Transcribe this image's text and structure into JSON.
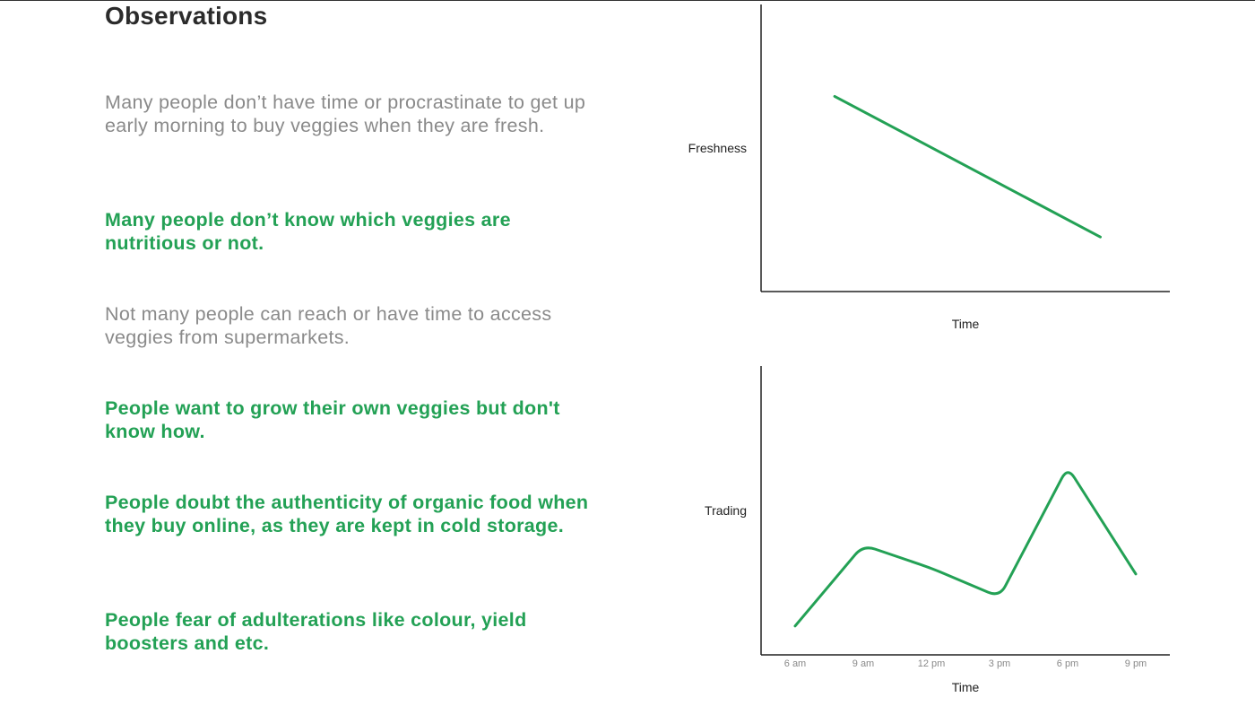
{
  "title": "Observations",
  "observations": [
    {
      "text": "Many people don’t have time or procrastinate to get up early morning to buy veggies when they are fresh.",
      "style": "muted"
    },
    {
      "text": "Many people don’t know which veggies are nutritious or not.",
      "style": "accent"
    },
    {
      "text": "Not many people can reach or have time to access veggies from supermarkets.",
      "style": "muted"
    },
    {
      "text": "People want to grow their own veggies but don't know how.",
      "style": "accent"
    },
    {
      "text": "People doubt the authenticity of organic food when they buy online, as they are kept in cold storage.",
      "style": "accent"
    },
    {
      "text": "People fear of adulterations like colour, yield boosters and etc.",
      "style": "accent"
    }
  ],
  "colors": {
    "accent": "#23a155",
    "muted": "#8a8a8a",
    "axis": "#222222"
  },
  "chart_data": [
    {
      "type": "line",
      "title": "",
      "xlabel": "Time",
      "ylabel": "Freshness",
      "x": [
        0.18,
        0.83
      ],
      "values": [
        0.68,
        0.19
      ],
      "xlim": [
        0,
        1
      ],
      "ylim": [
        0,
        1
      ],
      "grid": false,
      "legend": "none"
    },
    {
      "type": "line",
      "title": "",
      "xlabel": "Time",
      "ylabel": "Trading",
      "categories": [
        "6 am",
        "9 am",
        "12 pm",
        "3 pm",
        "6 pm",
        "9 pm"
      ],
      "x": [
        0,
        3,
        6,
        9,
        12,
        15
      ],
      "values": [
        0.1,
        0.38,
        0.3,
        0.2,
        0.65,
        0.28
      ],
      "xlim": [
        -1.5,
        16.5
      ],
      "ylim": [
        0,
        1
      ],
      "grid": false,
      "legend": "none"
    }
  ]
}
